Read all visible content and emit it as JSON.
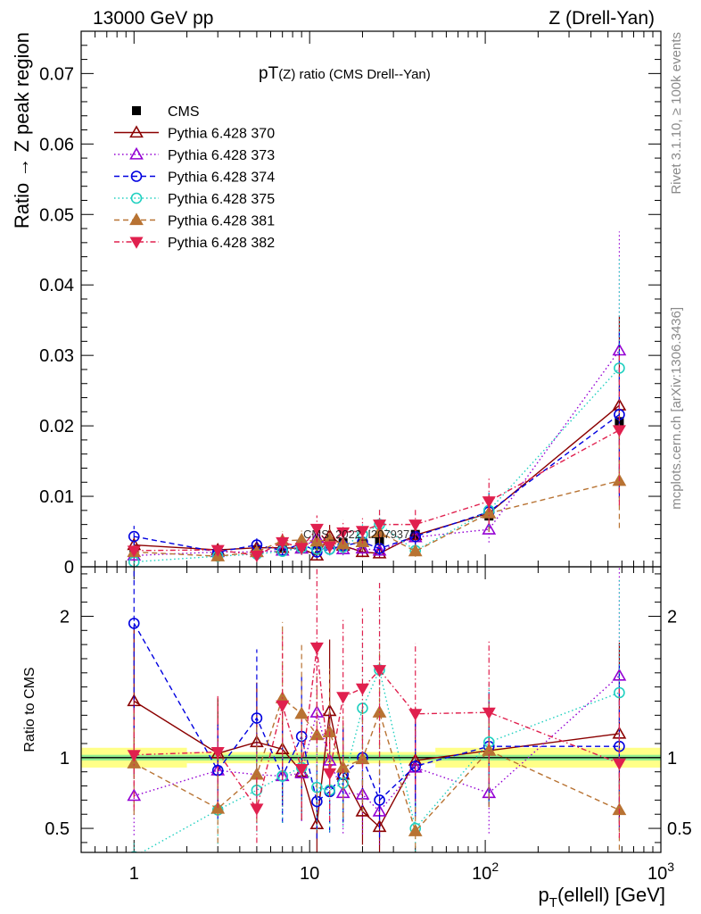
{
  "header": {
    "left": "13000 GeV pp",
    "right": "Z (Drell-Yan)"
  },
  "side_labels": {
    "rivet": "Rivet 3.1.10, ≥ 100k events",
    "mcplots": "mcplots.cern.ch [arXiv:1306.3436]"
  },
  "colors": {
    "CMS": "#000000",
    "370": "#8b0000",
    "373": "#9400d3",
    "374": "#0000e0",
    "375": "#20d0c0",
    "381": "#b87333",
    "382": "#e0204e",
    "band_yellow": "#ffff88",
    "band_green": "#90ee90"
  },
  "chart_data": [
    {
      "type": "scatter",
      "panel": "main",
      "title": "pT(Z) ratio (CMS Drell--Yan)",
      "title_main": "pT",
      "title_sub": "(Z) ratio (CMS Drell--Yan)",
      "watermark": "CMS_2022_I2079374",
      "xlabel": "p_T(ellell) [GeV]",
      "xlabel_main": "p",
      "xlabel_sub": "T",
      "xlabel_rest": "(ellell) [GeV]",
      "ylabel": "Ratio → Z peak region",
      "xscale": "log",
      "xlim": [
        0.5,
        1000
      ],
      "ylim": [
        0,
        0.076
      ],
      "xticks": [
        {
          "value": 1,
          "label": "1"
        },
        {
          "value": 10,
          "label": "10"
        },
        {
          "value": 100,
          "label": "10",
          "sup": "2"
        },
        {
          "value": 1000,
          "label": "10",
          "sup": "3"
        }
      ],
      "yticks": [
        {
          "value": 0,
          "label": "0"
        },
        {
          "value": 0.01,
          "label": "0.01"
        },
        {
          "value": 0.02,
          "label": "0.02"
        },
        {
          "value": 0.03,
          "label": "0.03"
        },
        {
          "value": 0.04,
          "label": "0.04"
        },
        {
          "value": 0.05,
          "label": "0.05"
        },
        {
          "value": 0.06,
          "label": "0.06"
        },
        {
          "value": 0.07,
          "label": "0.07"
        }
      ],
      "legend_position": "top-left",
      "x": [
        1,
        3,
        5,
        7,
        9,
        11,
        13,
        15.5,
        20,
        25,
        40,
        105,
        580
      ],
      "series": [
        {
          "name": "CMS",
          "marker": "square",
          "style": "none",
          "values": [
            0.0022,
            0.0023,
            0.0024,
            0.0026,
            0.0029,
            0.0031,
            0.0033,
            0.0034,
            0.0035,
            0.0037,
            0.0046,
            0.0072,
            0.0206
          ]
        },
        {
          "name": "Pythia 6.428 370",
          "marker": "triangle-up-open",
          "style": "solid",
          "values": [
            0.0031,
            0.0024,
            0.0027,
            0.0027,
            0.0026,
            0.0016,
            0.0044,
            0.003,
            0.0021,
            0.0019,
            0.0045,
            0.0076,
            0.0229
          ]
        },
        {
          "name": "Pythia 6.428 373",
          "marker": "triangle-up-open",
          "style": "dotted",
          "values": [
            0.0016,
            0.0021,
            0.0021,
            0.0023,
            0.0026,
            0.0041,
            0.0032,
            0.0025,
            0.0026,
            0.0023,
            0.0042,
            0.0053,
            0.0307
          ]
        },
        {
          "name": "Pythia 6.428 374",
          "marker": "circle-open",
          "style": "dashed",
          "values": [
            0.0043,
            0.0021,
            0.0031,
            0.0023,
            0.0033,
            0.0021,
            0.0025,
            0.003,
            0.0035,
            0.0026,
            0.0043,
            0.0078,
            0.0216
          ]
        },
        {
          "name": "Pythia 6.428 375",
          "marker": "circle-open",
          "style": "dotted",
          "values": [
            0.0007,
            0.0015,
            0.0018,
            0.0022,
            0.0027,
            0.0025,
            0.0025,
            0.0028,
            0.0046,
            0.006,
            0.0023,
            0.008,
            0.0282
          ]
        },
        {
          "name": "Pythia 6.428 381",
          "marker": "triangle-up-filled",
          "style": "dashed",
          "values": [
            0.0021,
            0.0015,
            0.0021,
            0.0037,
            0.0038,
            0.0036,
            0.0039,
            0.0032,
            0.0035,
            0.0049,
            0.0022,
            0.0076,
            0.0122
          ]
        },
        {
          "name": "Pythia 6.428 382",
          "marker": "triangle-down-filled",
          "style": "dashdot",
          "values": [
            0.0023,
            0.0024,
            0.0016,
            0.0035,
            0.0027,
            0.0054,
            0.0029,
            0.0049,
            0.0051,
            0.006,
            0.006,
            0.0093,
            0.0194
          ]
        }
      ]
    },
    {
      "type": "scatter",
      "panel": "ratio",
      "ylabel": "Ratio to CMS",
      "xscale": "log",
      "xlim": [
        0.5,
        1000
      ],
      "ylim": [
        0.33,
        2.35
      ],
      "yticks": [
        {
          "value": 0.5,
          "label": "0.5"
        },
        {
          "value": 1,
          "label": "1"
        },
        {
          "value": 2,
          "label": "2"
        }
      ],
      "reference_line": 1,
      "uncertainty_bands": {
        "yellow": [
          {
            "x_from": 0.5,
            "x_to": 2,
            "low": 0.93,
            "high": 1.07
          },
          {
            "x_from": 2,
            "x_to": 52,
            "low": 0.96,
            "high": 1.04
          },
          {
            "x_from": 52,
            "x_to": 1000,
            "low": 0.93,
            "high": 1.07
          }
        ],
        "green": [
          {
            "x_from": 0.5,
            "x_to": 1000,
            "low": 0.98,
            "high": 1.02
          }
        ]
      },
      "x": [
        1,
        3,
        5,
        7,
        9,
        11,
        13,
        15.5,
        20,
        25,
        40,
        105,
        580
      ],
      "series": [
        {
          "name": "Pythia 6.428 370",
          "values": [
            1.4,
            1.03,
            1.11,
            1.06,
            0.9,
            0.53,
            1.33,
            0.88,
            0.62,
            0.51,
            0.98,
            1.05,
            1.17
          ]
        },
        {
          "name": "Pythia 6.428 373",
          "values": [
            0.73,
            0.91,
            0.88,
            0.87,
            0.89,
            1.32,
            0.98,
            0.75,
            0.74,
            0.62,
            0.93,
            0.75,
            1.58
          ]
        },
        {
          "name": "Pythia 6.428 374",
          "values": [
            1.95,
            0.91,
            1.28,
            0.87,
            1.15,
            0.69,
            0.76,
            0.88,
            1.0,
            0.7,
            0.94,
            1.08,
            1.08
          ]
        },
        {
          "name": "Pythia 6.428 375",
          "values": [
            0.3,
            0.63,
            0.77,
            0.87,
            0.93,
            0.79,
            0.77,
            0.82,
            1.35,
            1.62,
            0.5,
            1.11,
            1.46
          ]
        },
        {
          "name": "Pythia 6.428 381",
          "values": [
            0.96,
            0.64,
            0.88,
            1.42,
            1.31,
            1.16,
            1.18,
            0.93,
            0.99,
            1.32,
            0.48,
            1.05,
            0.63
          ]
        },
        {
          "name": "Pythia 6.428 382",
          "values": [
            1.02,
            1.04,
            0.64,
            1.37,
            0.92,
            1.78,
            0.89,
            1.43,
            1.49,
            1.62,
            1.31,
            1.32,
            0.96
          ]
        }
      ]
    }
  ]
}
